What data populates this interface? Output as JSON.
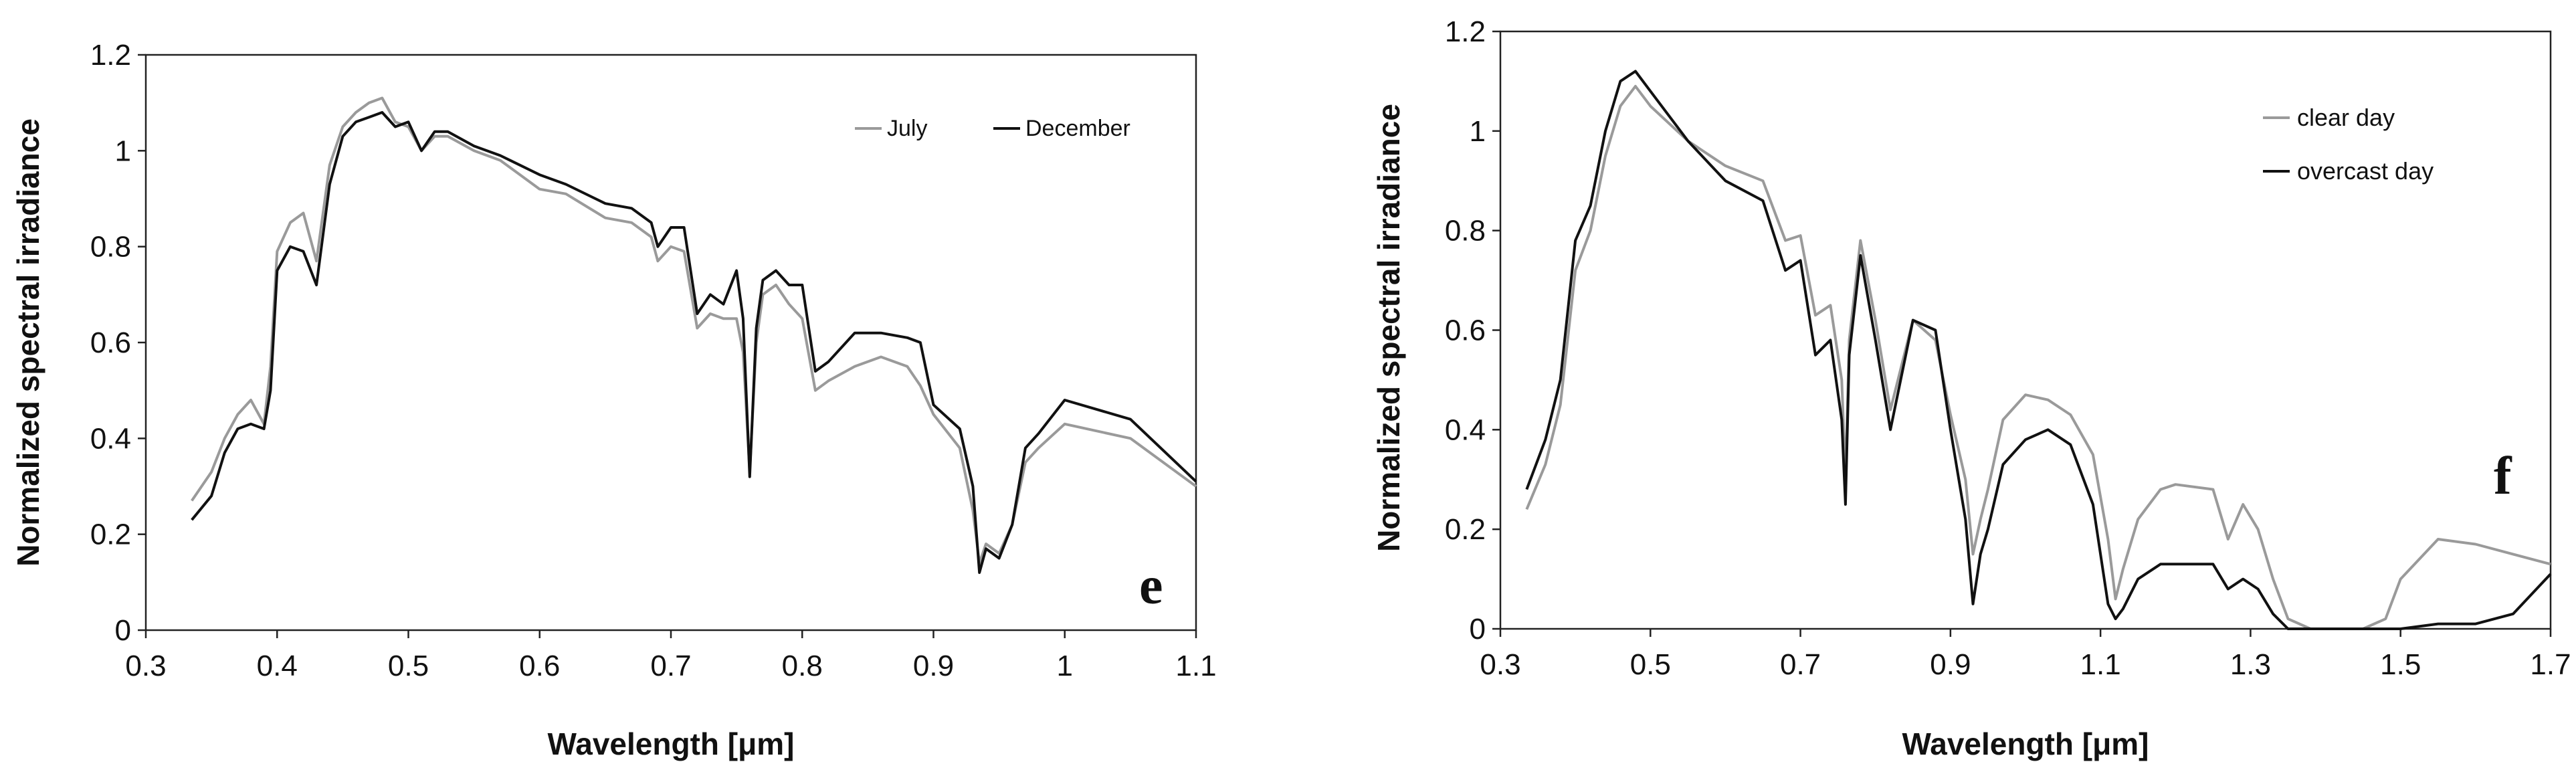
{
  "chart_data": [
    {
      "type": "line",
      "panel_label": "e",
      "xlabel": "Wavelength [μm]",
      "ylabel": "Normalized spectral irradiance",
      "xlim": [
        0.3,
        1.1
      ],
      "ylim": [
        0,
        1.2
      ],
      "xticks": [
        "0.3",
        "0.4",
        "0.5",
        "0.6",
        "0.7",
        "0.8",
        "0.9",
        "1",
        "1.1"
      ],
      "yticks": [
        "0",
        "0.2",
        "0.4",
        "0.6",
        "0.8",
        "1",
        "1.2"
      ],
      "grid": false,
      "legend": "top-right",
      "series": [
        {
          "name": "July",
          "color": "#9a9a9a",
          "x": [
            0.335,
            0.35,
            0.36,
            0.37,
            0.38,
            0.39,
            0.395,
            0.4,
            0.41,
            0.42,
            0.43,
            0.44,
            0.45,
            0.46,
            0.47,
            0.48,
            0.49,
            0.5,
            0.51,
            0.52,
            0.53,
            0.55,
            0.57,
            0.6,
            0.62,
            0.65,
            0.67,
            0.685,
            0.69,
            0.7,
            0.71,
            0.72,
            0.73,
            0.74,
            0.75,
            0.755,
            0.76,
            0.765,
            0.77,
            0.78,
            0.79,
            0.8,
            0.81,
            0.82,
            0.84,
            0.86,
            0.88,
            0.89,
            0.9,
            0.92,
            0.93,
            0.935,
            0.94,
            0.95,
            0.96,
            0.97,
            0.98,
            1.0,
            1.05,
            1.1
          ],
          "y": [
            0.27,
            0.33,
            0.4,
            0.45,
            0.48,
            0.43,
            0.55,
            0.79,
            0.85,
            0.87,
            0.77,
            0.97,
            1.05,
            1.08,
            1.1,
            1.11,
            1.06,
            1.05,
            1.0,
            1.03,
            1.03,
            1.0,
            0.98,
            0.92,
            0.91,
            0.86,
            0.85,
            0.82,
            0.77,
            0.8,
            0.79,
            0.63,
            0.66,
            0.65,
            0.65,
            0.58,
            0.33,
            0.6,
            0.7,
            0.72,
            0.68,
            0.65,
            0.5,
            0.52,
            0.55,
            0.57,
            0.55,
            0.51,
            0.45,
            0.38,
            0.25,
            0.14,
            0.18,
            0.16,
            0.22,
            0.35,
            0.38,
            0.43,
            0.4,
            0.3
          ]
        },
        {
          "name": "December",
          "color": "#111111",
          "x": [
            0.335,
            0.35,
            0.36,
            0.37,
            0.38,
            0.39,
            0.395,
            0.4,
            0.41,
            0.42,
            0.43,
            0.44,
            0.45,
            0.46,
            0.47,
            0.48,
            0.49,
            0.5,
            0.51,
            0.52,
            0.53,
            0.55,
            0.57,
            0.6,
            0.62,
            0.65,
            0.67,
            0.685,
            0.69,
            0.7,
            0.71,
            0.72,
            0.73,
            0.74,
            0.75,
            0.755,
            0.76,
            0.765,
            0.77,
            0.78,
            0.79,
            0.8,
            0.81,
            0.82,
            0.84,
            0.86,
            0.88,
            0.89,
            0.9,
            0.92,
            0.93,
            0.935,
            0.94,
            0.95,
            0.96,
            0.97,
            0.98,
            1.0,
            1.05,
            1.1
          ],
          "y": [
            0.23,
            0.28,
            0.37,
            0.42,
            0.43,
            0.42,
            0.5,
            0.75,
            0.8,
            0.79,
            0.72,
            0.93,
            1.03,
            1.06,
            1.07,
            1.08,
            1.05,
            1.06,
            1.0,
            1.04,
            1.04,
            1.01,
            0.99,
            0.95,
            0.93,
            0.89,
            0.88,
            0.85,
            0.8,
            0.84,
            0.84,
            0.66,
            0.7,
            0.68,
            0.75,
            0.65,
            0.32,
            0.63,
            0.73,
            0.75,
            0.72,
            0.72,
            0.54,
            0.56,
            0.62,
            0.62,
            0.61,
            0.6,
            0.47,
            0.42,
            0.3,
            0.12,
            0.17,
            0.15,
            0.22,
            0.38,
            0.41,
            0.48,
            0.44,
            0.31
          ]
        }
      ]
    },
    {
      "type": "line",
      "panel_label": "f",
      "xlabel": "Wavelength [μm]",
      "ylabel": "Normalized spectral irradiance",
      "xlim": [
        0.3,
        1.7
      ],
      "ylim": [
        0,
        1.2
      ],
      "xticks": [
        "0.3",
        "0.5",
        "0.7",
        "0.9",
        "1.1",
        "1.3",
        "1.5",
        "1.7"
      ],
      "yticks": [
        "0",
        "0.2",
        "0.4",
        "0.6",
        "0.8",
        "1",
        "1.2"
      ],
      "grid": false,
      "legend": "top-right",
      "series": [
        {
          "name": "clear day",
          "color": "#9a9a9a",
          "x": [
            0.335,
            0.36,
            0.38,
            0.4,
            0.42,
            0.44,
            0.46,
            0.48,
            0.5,
            0.55,
            0.6,
            0.65,
            0.68,
            0.7,
            0.72,
            0.74,
            0.755,
            0.76,
            0.765,
            0.78,
            0.8,
            0.82,
            0.85,
            0.88,
            0.9,
            0.92,
            0.93,
            0.94,
            0.95,
            0.97,
            1.0,
            1.03,
            1.06,
            1.09,
            1.11,
            1.12,
            1.13,
            1.15,
            1.18,
            1.2,
            1.25,
            1.27,
            1.29,
            1.31,
            1.33,
            1.35,
            1.38,
            1.4,
            1.45,
            1.48,
            1.5,
            1.55,
            1.6,
            1.65,
            1.7
          ],
          "y": [
            0.24,
            0.33,
            0.45,
            0.72,
            0.8,
            0.95,
            1.05,
            1.09,
            1.05,
            0.98,
            0.93,
            0.9,
            0.78,
            0.79,
            0.63,
            0.65,
            0.5,
            0.3,
            0.58,
            0.78,
            0.62,
            0.44,
            0.62,
            0.58,
            0.43,
            0.3,
            0.15,
            0.22,
            0.28,
            0.42,
            0.47,
            0.46,
            0.43,
            0.35,
            0.18,
            0.06,
            0.12,
            0.22,
            0.28,
            0.29,
            0.28,
            0.18,
            0.25,
            0.2,
            0.1,
            0.02,
            0.0,
            0.0,
            0.0,
            0.02,
            0.1,
            0.18,
            0.17,
            0.15,
            0.13
          ]
        },
        {
          "name": "overcast day",
          "color": "#111111",
          "x": [
            0.335,
            0.36,
            0.38,
            0.4,
            0.42,
            0.44,
            0.46,
            0.48,
            0.5,
            0.55,
            0.6,
            0.65,
            0.68,
            0.7,
            0.72,
            0.74,
            0.755,
            0.76,
            0.765,
            0.78,
            0.8,
            0.82,
            0.85,
            0.88,
            0.9,
            0.92,
            0.93,
            0.94,
            0.95,
            0.97,
            1.0,
            1.03,
            1.06,
            1.09,
            1.11,
            1.12,
            1.13,
            1.15,
            1.18,
            1.2,
            1.25,
            1.27,
            1.29,
            1.31,
            1.33,
            1.35,
            1.38,
            1.4,
            1.45,
            1.48,
            1.5,
            1.55,
            1.6,
            1.65,
            1.7
          ],
          "y": [
            0.28,
            0.38,
            0.5,
            0.78,
            0.85,
            1.0,
            1.1,
            1.12,
            1.08,
            0.98,
            0.9,
            0.86,
            0.72,
            0.74,
            0.55,
            0.58,
            0.42,
            0.25,
            0.55,
            0.75,
            0.58,
            0.4,
            0.62,
            0.6,
            0.4,
            0.22,
            0.05,
            0.15,
            0.2,
            0.33,
            0.38,
            0.4,
            0.37,
            0.25,
            0.05,
            0.02,
            0.04,
            0.1,
            0.13,
            0.13,
            0.13,
            0.08,
            0.1,
            0.08,
            0.03,
            0.0,
            0.0,
            0.0,
            0.0,
            0.0,
            0.0,
            0.01,
            0.01,
            0.03,
            0.11
          ]
        }
      ]
    }
  ]
}
